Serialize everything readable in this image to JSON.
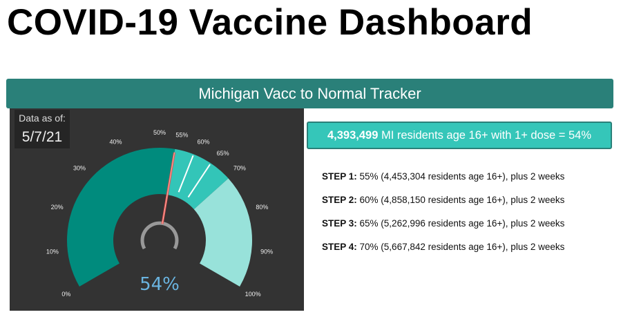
{
  "page_title": "COVID-19 Vaccine Dashboard",
  "tracker_title": "Michigan Vacc to Normal Tracker",
  "data_as_of": {
    "label": "Data as of:",
    "date": "5/7/21"
  },
  "summary": {
    "count": "4,393,499",
    "text": " MI residents age 16+ with 1+ dose = 54%"
  },
  "steps": [
    {
      "label": "STEP 1:",
      "text": " 55% (4,453,304 residents age 16+), plus 2 weeks"
    },
    {
      "label": "STEP 2:",
      "text": " 60% (4,858,150 residents age 16+), plus 2 weeks"
    },
    {
      "label": "STEP 3:",
      "text": " 65% (5,262,996 residents age 16+), plus 2 weeks"
    },
    {
      "label": "STEP 4:",
      "text": " 70% (5,667,842 residents age 16+), plus 2 weeks"
    }
  ],
  "chart_data": {
    "type": "gauge",
    "value": 54,
    "value_label": "54%",
    "min": 0,
    "max": 100,
    "ticks": [
      "0%",
      "10%",
      "20%",
      "30%",
      "40%",
      "50%",
      "55%",
      "60%",
      "65%",
      "70%",
      "80%",
      "90%",
      "100%"
    ],
    "tick_values": [
      0,
      10,
      20,
      30,
      40,
      50,
      55,
      60,
      65,
      70,
      80,
      90,
      100
    ],
    "bands": [
      {
        "from": 0,
        "to": 54,
        "color": "#008b7d"
      },
      {
        "from": 54,
        "to": 70,
        "color": "#33c5b8"
      },
      {
        "from": 70,
        "to": 100,
        "color": "#98e2da"
      }
    ],
    "step_markers": [
      60,
      65
    ],
    "needle_color": "#e0524f",
    "value_color": "#6ab4e0"
  }
}
